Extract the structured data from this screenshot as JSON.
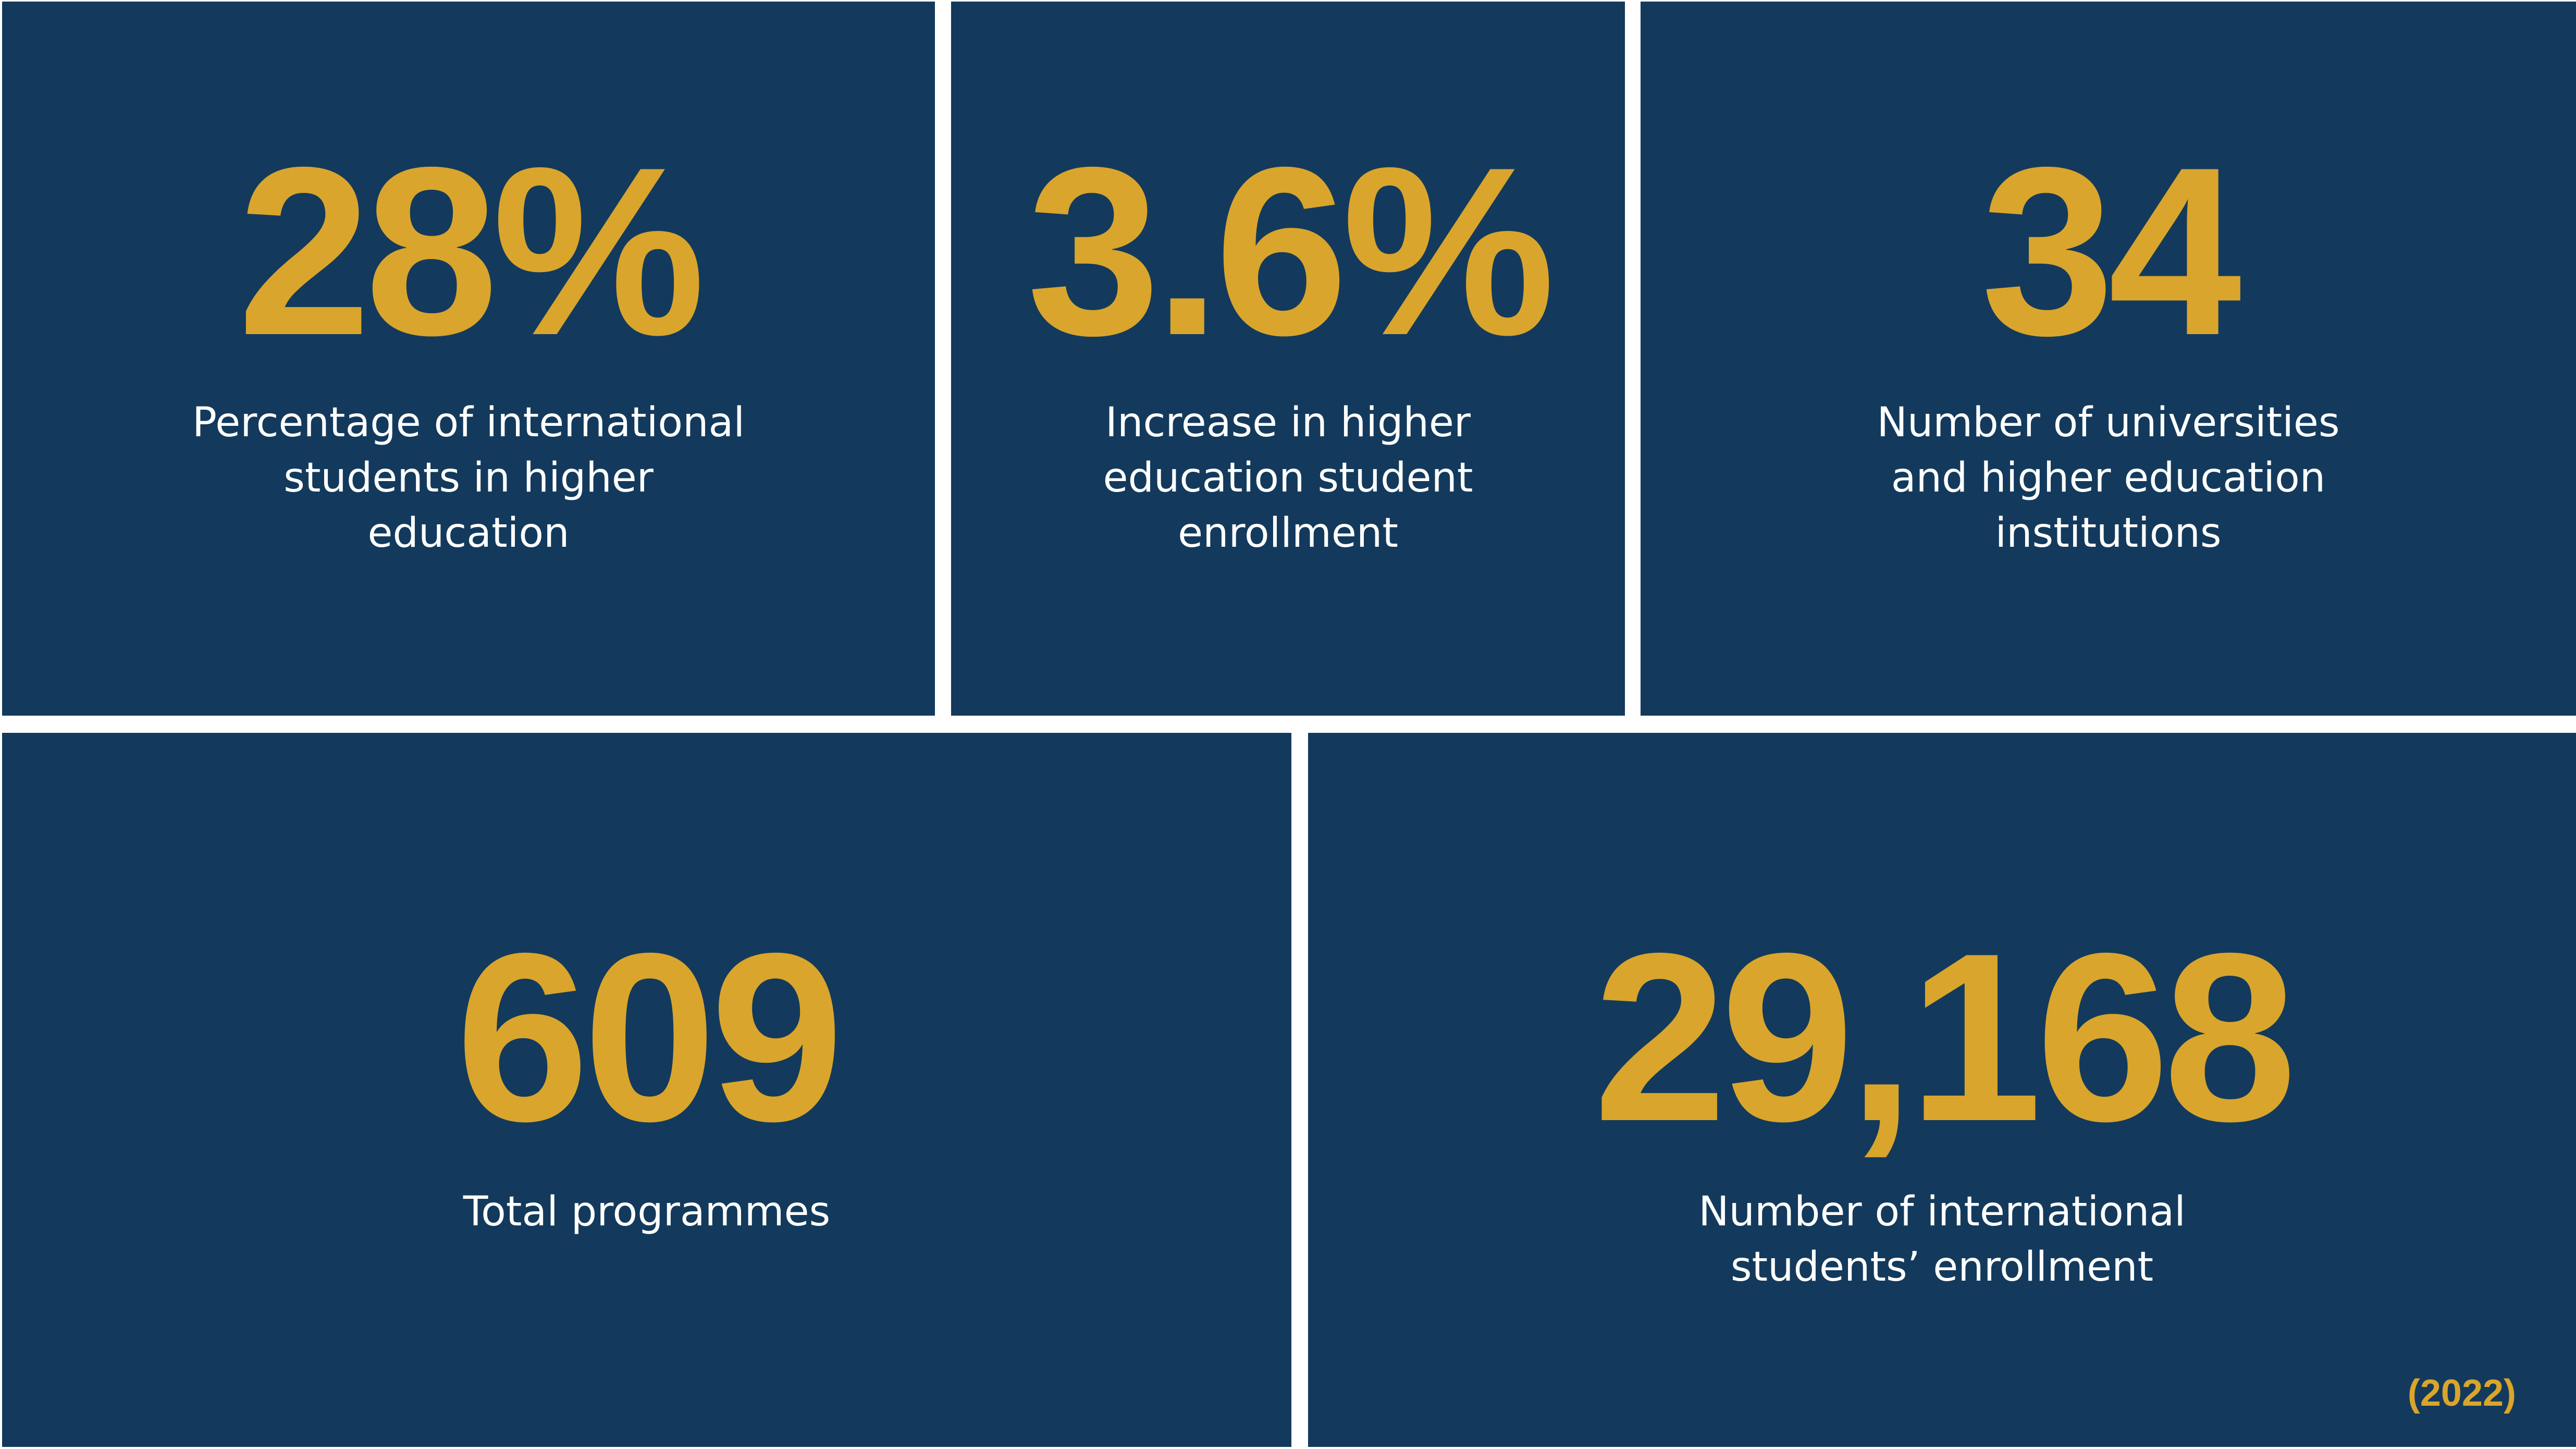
{
  "theme": {
    "page_background": "#FFFFFF",
    "card_background": "#133A5C",
    "number_color": "#D9A52C",
    "label_color": "#FFFFFF",
    "note_color": "#D9A52C"
  },
  "cards": [
    {
      "value": "28%",
      "label": "Percentage of international\nstudents in higher\neducation"
    },
    {
      "value": "3.6%",
      "label": "Increase in higher\neducation student\nenrollment"
    },
    {
      "value": "34",
      "label": "Number of universities\nand higher education\ninstitutions"
    },
    {
      "value": "609",
      "label": "Total programmes"
    },
    {
      "value": "29,168",
      "label": "Number of international\nstudents’ enrollment",
      "note": "(2022)"
    }
  ],
  "chart_data": {
    "type": "table",
    "title": "Higher education statistics",
    "categories": [
      "Percentage of international students in higher education",
      "Increase in higher education student enrollment",
      "Number of universities and higher education institutions",
      "Total programmes",
      "Number of international students’ enrollment"
    ],
    "values": [
      "28%",
      "3.6%",
      "34",
      "609",
      "29,168"
    ],
    "note": "(2022)",
    "layout": "5 stat cards: 3 on top row, 2 on bottom row",
    "colors": {
      "card_background": "#133A5C",
      "value_color": "#D9A52C",
      "label_color": "#FFFFFF"
    }
  }
}
